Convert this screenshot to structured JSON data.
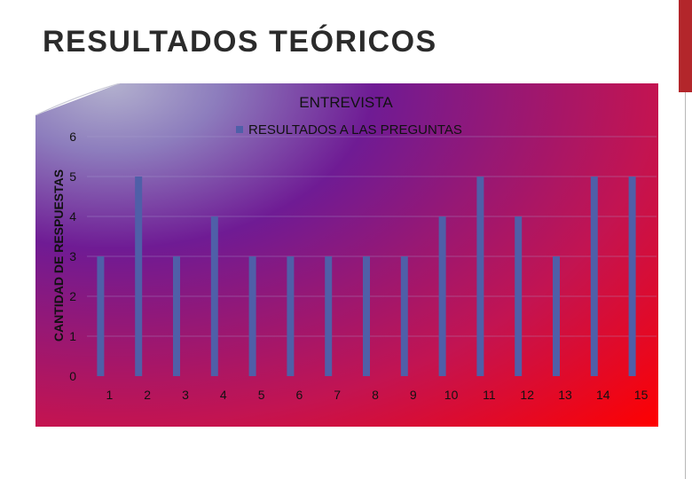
{
  "slide": {
    "title": "RESULTADOS TEÓRICOS"
  },
  "colors": {
    "bar": "#4f5fa8",
    "bar_top": "#6a7ac0",
    "text": "#111111",
    "accent": "#b3262b"
  },
  "chart_data": {
    "type": "bar",
    "title": "ENTREVISTA",
    "ylabel": "CANTIDAD DE RESPUESTAS",
    "xlabel": "",
    "categories": [
      "1",
      "2",
      "3",
      "4",
      "5",
      "6",
      "7",
      "8",
      "9",
      "10",
      "11",
      "12",
      "13",
      "14",
      "15"
    ],
    "series": [
      {
        "name": "RESULTADOS A LAS PREGUNTAS",
        "values": [
          3,
          5,
          3,
          4,
          3,
          3,
          3,
          3,
          3,
          4,
          5,
          4,
          3,
          5,
          5
        ]
      }
    ],
    "ylim": [
      0,
      6
    ],
    "yticks": [
      "0",
      "1",
      "2",
      "3",
      "4",
      "5",
      "6"
    ],
    "grid": true,
    "legend": "top-center"
  }
}
